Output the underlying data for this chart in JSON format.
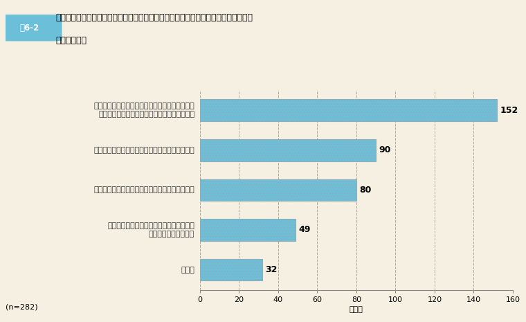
{
  "title_line1": "「所属組織や倫理審査会の相談・通報窓口に相談・確認する」を選択しなかった理由",
  "title_line2": "（複数回答）",
  "figure_label": "図6-2",
  "categories": [
    "同僚が違反行為をしていなかった場合に、本人や\n　職場の他の職員に迷惑がかかるおそれがある",
    "自分自身が不利益な取扱いを受けるおそれがある",
    "相談等しても解決にはつながらないと感じている",
    "所属組織や倫理審査会の相談・通報窓口の\n　連絡先が分からない",
    "その他"
  ],
  "values": [
    152,
    90,
    80,
    49,
    32
  ],
  "bar_color": "#6bbfd8",
  "bar_edgecolor": "#8ab0be",
  "background_color": "#f5f0e1",
  "plot_bg_color": "#f5f0e1",
  "xlim": [
    0,
    160
  ],
  "xticks": [
    0,
    20,
    40,
    60,
    80,
    100,
    120,
    140,
    160
  ],
  "xlabel": "（人）",
  "n_label": "(n=282)",
  "grid_color": "#b0a898",
  "value_label_fontsize": 9,
  "category_fontsize": 8,
  "axis_label_fontsize": 8,
  "label_box_color": "#6bbfd8",
  "label_box_text": "図6-2",
  "title_fontsize": 9
}
